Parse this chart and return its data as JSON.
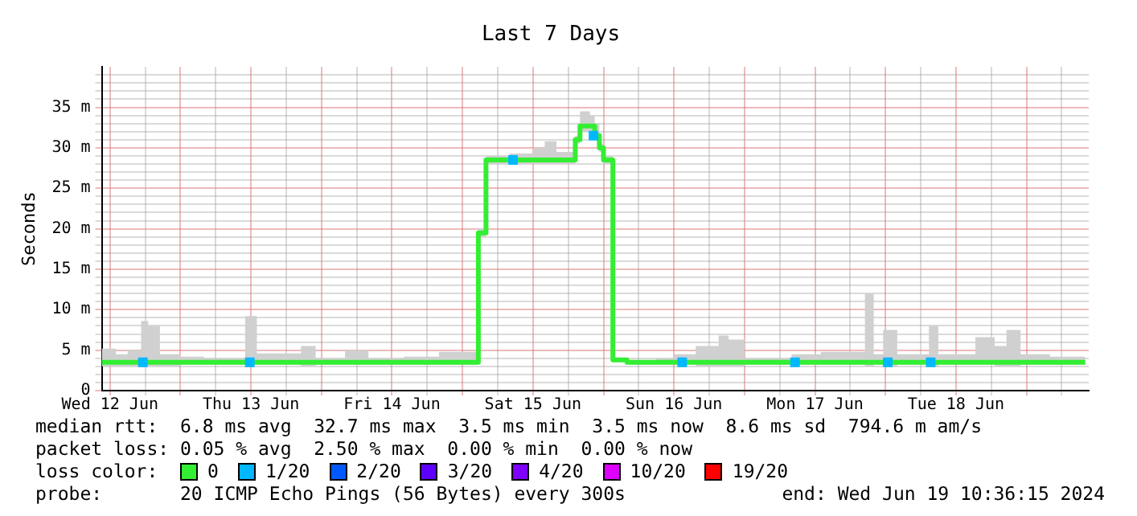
{
  "chart_data": {
    "type": "step",
    "title": "Last 7 Days",
    "ylabel": "Seconds",
    "legend_title": "loss color:",
    "legend": "bottom",
    "grid": true,
    "annotations": [
      "median rtt:  6.8 ms avg  32.7 ms max  3.5 ms min  3.5 ms now  8.6 ms sd  794.6 m am/s",
      "packet loss: 0.05 % avg  2.50 % max  0.00 % min  0.00 % now",
      "probe:       20 ICMP Echo Pings (56 Bytes) every 300s",
      "end: Wed Jun 19 10:36:15 2024"
    ],
    "xlim": [
      "2024-06-12T10:36",
      "2024-06-19T10:36"
    ],
    "xticks": [
      {
        "value": "2024-06-12T12:00",
        "label": "Wed 12 Jun"
      },
      {
        "value": "2024-06-12T18:00",
        "label": null
      },
      {
        "value": "2024-06-13T00:00",
        "label": null
      },
      {
        "value": "2024-06-13T06:00",
        "label": null
      },
      {
        "value": "2024-06-13T12:00",
        "label": "Thu 13 Jun"
      },
      {
        "value": "2024-06-13T18:00",
        "label": null
      },
      {
        "value": "2024-06-14T00:00",
        "label": null
      },
      {
        "value": "2024-06-14T06:00",
        "label": null
      },
      {
        "value": "2024-06-14T12:00",
        "label": "Fri 14 Jun"
      },
      {
        "value": "2024-06-14T18:00",
        "label": null
      },
      {
        "value": "2024-06-15T00:00",
        "label": null
      },
      {
        "value": "2024-06-15T06:00",
        "label": null
      },
      {
        "value": "2024-06-15T12:00",
        "label": "Sat 15 Jun"
      },
      {
        "value": "2024-06-15T18:00",
        "label": null
      },
      {
        "value": "2024-06-16T00:00",
        "label": null
      },
      {
        "value": "2024-06-16T06:00",
        "label": null
      },
      {
        "value": "2024-06-16T12:00",
        "label": "Sun 16 Jun"
      },
      {
        "value": "2024-06-16T18:00",
        "label": null
      },
      {
        "value": "2024-06-17T00:00",
        "label": null
      },
      {
        "value": "2024-06-17T06:00",
        "label": null
      },
      {
        "value": "2024-06-17T12:00",
        "label": "Mon 17 Jun"
      },
      {
        "value": "2024-06-17T18:00",
        "label": null
      },
      {
        "value": "2024-06-18T00:00",
        "label": null
      },
      {
        "value": "2024-06-18T06:00",
        "label": null
      },
      {
        "value": "2024-06-18T12:00",
        "label": "Tue 18 Jun"
      },
      {
        "value": "2024-06-18T18:00",
        "label": null
      },
      {
        "value": "2024-06-19T00:00",
        "label": null
      },
      {
        "value": "2024-06-19T06:00",
        "label": null
      }
    ],
    "ylim": [
      0,
      40
    ],
    "yticks": [
      {
        "value": 0,
        "label": "0"
      },
      {
        "value": 1,
        "label": null
      },
      {
        "value": 2,
        "label": null
      },
      {
        "value": 3,
        "label": null
      },
      {
        "value": 4,
        "label": null
      },
      {
        "value": 5,
        "label": "5 m"
      },
      {
        "value": 6,
        "label": null
      },
      {
        "value": 7,
        "label": null
      },
      {
        "value": 8,
        "label": null
      },
      {
        "value": 9,
        "label": null
      },
      {
        "value": 10,
        "label": "10 m"
      },
      {
        "value": 11,
        "label": null
      },
      {
        "value": 12,
        "label": null
      },
      {
        "value": 13,
        "label": null
      },
      {
        "value": 14,
        "label": null
      },
      {
        "value": 15,
        "label": "15 m"
      },
      {
        "value": 16,
        "label": null
      },
      {
        "value": 17,
        "label": null
      },
      {
        "value": 18,
        "label": null
      },
      {
        "value": 19,
        "label": null
      },
      {
        "value": 20,
        "label": "20 m"
      },
      {
        "value": 21,
        "label": null
      },
      {
        "value": 22,
        "label": null
      },
      {
        "value": 23,
        "label": null
      },
      {
        "value": 24,
        "label": null
      },
      {
        "value": 25,
        "label": "25 m"
      },
      {
        "value": 26,
        "label": null
      },
      {
        "value": 27,
        "label": null
      },
      {
        "value": 28,
        "label": null
      },
      {
        "value": 29,
        "label": null
      },
      {
        "value": 30,
        "label": "30 m"
      },
      {
        "value": 31,
        "label": null
      },
      {
        "value": 32,
        "label": null
      },
      {
        "value": 33,
        "label": null
      },
      {
        "value": 34,
        "label": null
      },
      {
        "value": 35,
        "label": "35 m"
      },
      {
        "value": 36,
        "label": null
      },
      {
        "value": 37,
        "label": null
      },
      {
        "value": 38,
        "label": null
      },
      {
        "value": 39,
        "label": null
      }
    ],
    "series": [
      {
        "name": "0",
        "color": "#33ee33",
        "x": [
          "2024-06-12T10:36",
          "2024-06-12T13:00",
          "2024-06-12T15:00",
          "2024-06-12T17:18",
          "2024-06-12T18:30",
          "2024-06-12T20:30",
          "2024-06-13T00:00",
          "2024-06-13T04:00",
          "2024-06-13T09:00",
          "2024-06-13T11:00",
          "2024-06-13T13:00",
          "2024-06-13T16:00",
          "2024-06-13T20:30",
          "2024-06-13T23:00",
          "2024-06-14T04:00",
          "2024-06-14T08:00",
          "2024-06-14T14:00",
          "2024-06-14T20:00",
          "2024-06-15T00:00",
          "2024-06-15T02:42",
          "2024-06-15T04:00",
          "2024-06-15T08:00",
          "2024-06-15T12:00",
          "2024-06-15T14:00",
          "2024-06-15T16:00",
          "2024-06-15T19:12",
          "2024-06-15T20:00",
          "2024-06-15T21:42",
          "2024-06-15T22:30",
          "2024-06-15T23:18",
          "2024-06-16T00:00",
          "2024-06-16T01:36",
          "2024-06-16T04:00",
          "2024-06-16T09:00",
          "2024-06-16T12:00",
          "2024-06-16T15:42",
          "2024-06-16T19:36",
          "2024-06-16T21:18",
          "2024-06-17T00:00",
          "2024-06-17T04:00",
          "2024-06-17T08:00",
          "2024-06-17T13:00",
          "2024-06-17T20:30",
          "2024-06-17T22:00",
          "2024-06-17T23:36",
          "2024-06-18T02:00",
          "2024-06-18T07:24",
          "2024-06-18T09:00",
          "2024-06-18T15:18",
          "2024-06-18T18:36",
          "2024-06-18T20:36",
          "2024-06-18T23:00",
          "2024-06-19T04:00",
          "2024-06-19T10:00"
        ],
        "values": [
          3.5,
          3.5,
          3.5,
          3.5,
          3.5,
          3.5,
          3.5,
          3.5,
          3.5,
          3.5,
          3.5,
          3.5,
          3.5,
          3.5,
          3.5,
          3.5,
          3.5,
          3.5,
          3.5,
          19.5,
          28.5,
          28.5,
          28.5,
          28.5,
          28.5,
          31,
          32.7,
          32.7,
          31.5,
          30,
          28.5,
          3.8,
          3.5,
          3.5,
          3.5,
          3.5,
          3.5,
          3.5,
          3.5,
          3.5,
          3.5,
          3.5,
          3.5,
          3.5,
          3.5,
          3.5,
          3.5,
          3.5,
          3.5,
          3.5,
          3.5,
          3.5,
          3.5,
          3.5
        ],
        "lower": [
          3,
          3,
          3,
          3,
          3,
          3,
          3.2,
          3.2,
          3.2,
          3.2,
          3.2,
          3.2,
          3,
          3.2,
          3.2,
          3.2,
          3.2,
          3.2,
          3.2,
          19,
          28,
          28,
          28,
          28,
          28,
          30.5,
          32,
          32,
          31,
          29.5,
          28,
          3.5,
          3.2,
          3.2,
          3.2,
          3,
          3,
          3,
          3.2,
          3.2,
          3.2,
          3.2,
          3,
          3.2,
          3,
          3.2,
          3,
          3.2,
          3.2,
          3,
          3,
          3.2,
          3.2,
          3.2
        ],
        "upper": [
          5.2,
          4.5,
          5,
          8.6,
          8,
          4.5,
          4.2,
          4,
          4,
          9.2,
          4.6,
          4.6,
          5.5,
          4,
          5,
          4,
          4.2,
          4.8,
          4.8,
          20,
          29,
          29.3,
          30,
          30.8,
          29.5,
          31.5,
          34.5,
          34,
          33,
          30.5,
          29,
          4,
          3.8,
          4,
          4.5,
          5.5,
          6.8,
          6.3,
          4,
          4,
          4.5,
          4.8,
          12,
          4.5,
          7.5,
          4.5,
          8,
          4.5,
          6.6,
          5.5,
          7.5,
          4.5,
          4.2,
          4.5
        ]
      },
      {
        "name": "1/20",
        "type": "scatter",
        "color": "#00b8ff",
        "marker": "square",
        "x": [
          "2024-06-12T17:36",
          "2024-06-13T11:48",
          "2024-06-15T08:36",
          "2024-06-15T22:18",
          "2024-06-16T13:24",
          "2024-06-17T08:36",
          "2024-06-18T00:24",
          "2024-06-18T07:42"
        ],
        "values": [
          3.5,
          3.5,
          28.5,
          31.5,
          3.5,
          3.5,
          3.5,
          3.5
        ]
      },
      {
        "name": "2/20",
        "type": "scatter",
        "color": "#0059ff"
      },
      {
        "name": "3/20",
        "type": "scatter",
        "color": "#5e00ff"
      },
      {
        "name": "4/20",
        "type": "scatter",
        "color": "#7e00ff"
      },
      {
        "name": "10/20",
        "type": "scatter",
        "color": "#dd00ff"
      },
      {
        "name": "19/20",
        "type": "scatter",
        "color": "#ff0000"
      }
    ]
  }
}
